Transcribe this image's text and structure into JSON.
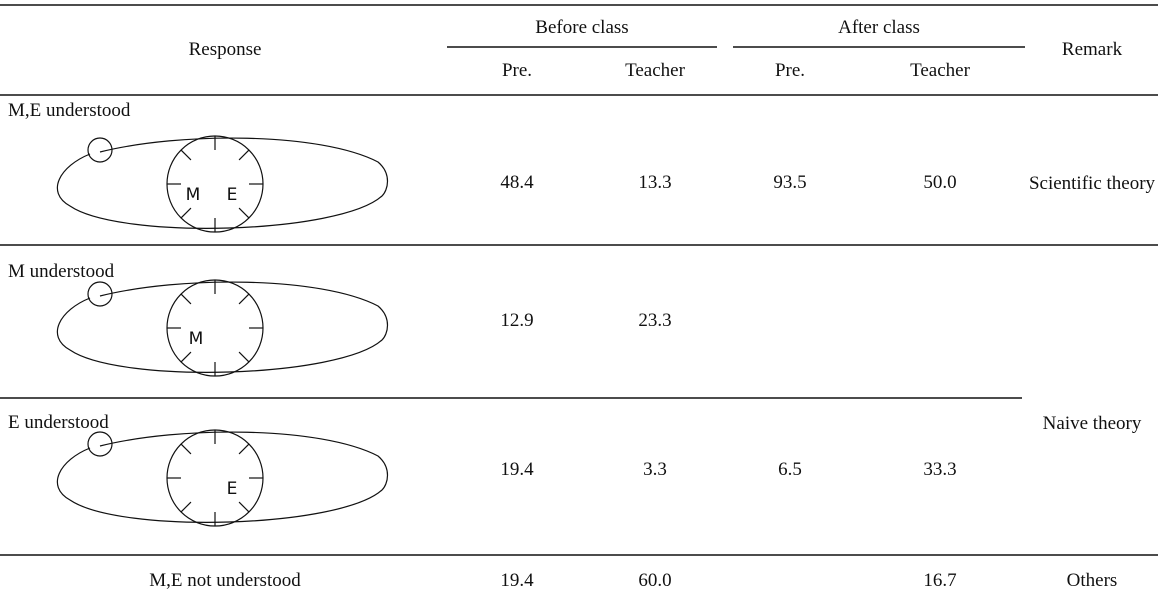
{
  "table": {
    "header": {
      "response": "Response",
      "groups": [
        {
          "label": "Before class",
          "columns": [
            "Pre.",
            "Teacher"
          ]
        },
        {
          "label": "After class",
          "columns": [
            "Pre.",
            "Teacher"
          ]
        }
      ],
      "remark": "Remark"
    },
    "rows": [
      {
        "response": "M,E understood",
        "diagram": [
          "M",
          "E"
        ],
        "values": [
          "48.4",
          "13.3",
          "93.5",
          "50.0"
        ]
      },
      {
        "response": "M understood",
        "diagram": [
          "M"
        ],
        "values": [
          "12.9",
          "23.3",
          null,
          null
        ]
      },
      {
        "response": "E understood",
        "diagram": [
          "E"
        ],
        "values": [
          "19.4",
          "3.3",
          "6.5",
          "33.3"
        ]
      },
      {
        "response": "M,E not understood",
        "values": [
          "19.4",
          "60.0",
          null,
          "16.7"
        ]
      }
    ],
    "remarks": [
      "Scientific theory",
      "Naive theory",
      "Others"
    ]
  }
}
